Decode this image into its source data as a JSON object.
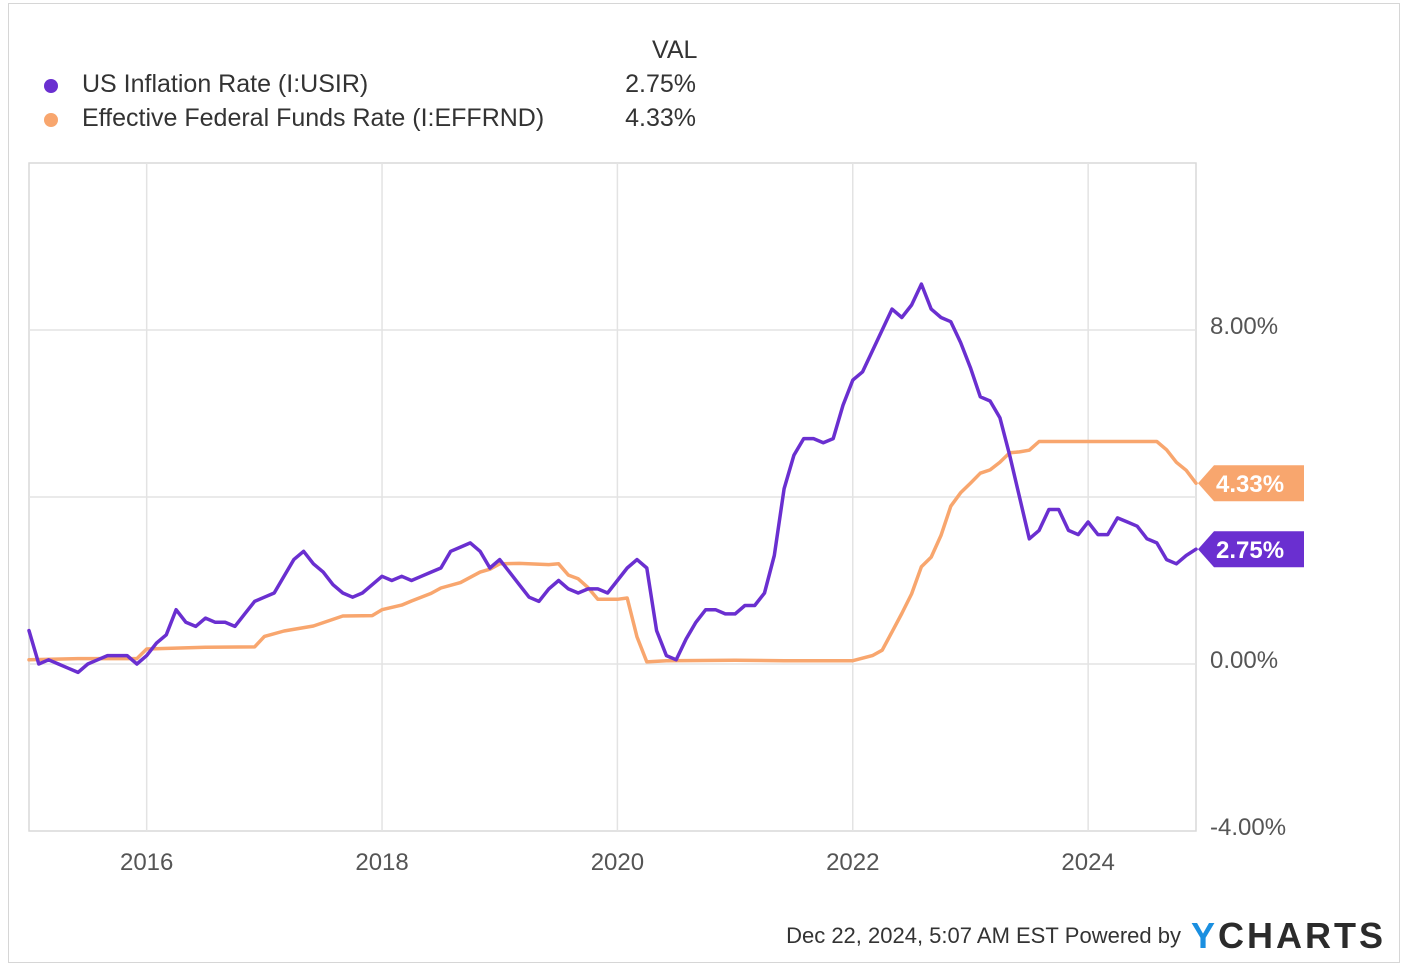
{
  "legend": {
    "header": "VAL",
    "items": [
      {
        "label": "US Inflation Rate (I:USIR)",
        "value": "2.75%",
        "color": "#6a2fd0"
      },
      {
        "label": "Effective Federal Funds Rate (I:EFFRND)",
        "value": "4.33%",
        "color": "#f8a66e"
      }
    ]
  },
  "chart_data": {
    "type": "line",
    "xlim": [
      "2015-01",
      "2024-12"
    ],
    "ylim": [
      -4,
      12
    ],
    "grid": true,
    "legend_position": "top-left",
    "x_ticks": [
      {
        "label": "2016",
        "date": "2016-01"
      },
      {
        "label": "2018",
        "date": "2018-01"
      },
      {
        "label": "2020",
        "date": "2020-01"
      },
      {
        "label": "2022",
        "date": "2022-01"
      },
      {
        "label": "2024",
        "date": "2024-01"
      }
    ],
    "y_ticks": [
      {
        "label": "8.00%",
        "value": 8
      },
      {
        "label": "0.00%",
        "value": 0
      },
      {
        "label": "-4.00%",
        "value": -4
      }
    ],
    "series": [
      {
        "name": "US Inflation Rate (I:USIR)",
        "color": "#6a2fd0",
        "end_label": "2.75%",
        "points": [
          [
            "2015-01",
            0.8
          ],
          [
            "2015-02",
            0.0
          ],
          [
            "2015-03",
            0.1
          ],
          [
            "2015-04",
            0.0
          ],
          [
            "2015-05",
            -0.1
          ],
          [
            "2015-06",
            -0.2
          ],
          [
            "2015-07",
            0.0
          ],
          [
            "2015-08",
            0.1
          ],
          [
            "2015-09",
            0.2
          ],
          [
            "2015-10",
            0.2
          ],
          [
            "2015-11",
            0.2
          ],
          [
            "2015-12",
            0.0
          ],
          [
            "2016-01",
            0.2
          ],
          [
            "2016-02",
            0.5
          ],
          [
            "2016-03",
            0.7
          ],
          [
            "2016-04",
            1.3
          ],
          [
            "2016-05",
            1.0
          ],
          [
            "2016-06",
            0.9
          ],
          [
            "2016-07",
            1.1
          ],
          [
            "2016-08",
            1.0
          ],
          [
            "2016-09",
            1.0
          ],
          [
            "2016-10",
            0.9
          ],
          [
            "2016-11",
            1.2
          ],
          [
            "2016-12",
            1.5
          ],
          [
            "2017-01",
            1.6
          ],
          [
            "2017-02",
            1.7
          ],
          [
            "2017-03",
            2.1
          ],
          [
            "2017-04",
            2.5
          ],
          [
            "2017-05",
            2.7
          ],
          [
            "2017-06",
            2.4
          ],
          [
            "2017-07",
            2.2
          ],
          [
            "2017-08",
            1.9
          ],
          [
            "2017-09",
            1.7
          ],
          [
            "2017-10",
            1.6
          ],
          [
            "2017-11",
            1.7
          ],
          [
            "2017-12",
            1.9
          ],
          [
            "2018-01",
            2.1
          ],
          [
            "2018-02",
            2.0
          ],
          [
            "2018-03",
            2.1
          ],
          [
            "2018-04",
            2.0
          ],
          [
            "2018-05",
            2.1
          ],
          [
            "2018-06",
            2.2
          ],
          [
            "2018-07",
            2.3
          ],
          [
            "2018-08",
            2.7
          ],
          [
            "2018-09",
            2.8
          ],
          [
            "2018-10",
            2.9
          ],
          [
            "2018-11",
            2.7
          ],
          [
            "2018-12",
            2.3
          ],
          [
            "2019-01",
            2.5
          ],
          [
            "2019-02",
            2.2
          ],
          [
            "2019-03",
            1.9
          ],
          [
            "2019-04",
            1.6
          ],
          [
            "2019-05",
            1.5
          ],
          [
            "2019-06",
            1.8
          ],
          [
            "2019-07",
            2.0
          ],
          [
            "2019-08",
            1.8
          ],
          [
            "2019-09",
            1.7
          ],
          [
            "2019-10",
            1.8
          ],
          [
            "2019-11",
            1.8
          ],
          [
            "2019-12",
            1.7
          ],
          [
            "2020-01",
            2.0
          ],
          [
            "2020-02",
            2.3
          ],
          [
            "2020-03",
            2.5
          ],
          [
            "2020-04",
            2.3
          ],
          [
            "2020-05",
            0.8
          ],
          [
            "2020-06",
            0.2
          ],
          [
            "2020-07",
            0.1
          ],
          [
            "2020-08",
            0.6
          ],
          [
            "2020-09",
            1.0
          ],
          [
            "2020-10",
            1.3
          ],
          [
            "2020-11",
            1.3
          ],
          [
            "2020-12",
            1.2
          ],
          [
            "2021-01",
            1.2
          ],
          [
            "2021-02",
            1.4
          ],
          [
            "2021-03",
            1.4
          ],
          [
            "2021-04",
            1.7
          ],
          [
            "2021-05",
            2.6
          ],
          [
            "2021-06",
            4.2
          ],
          [
            "2021-07",
            5.0
          ],
          [
            "2021-08",
            5.4
          ],
          [
            "2021-09",
            5.4
          ],
          [
            "2021-10",
            5.3
          ],
          [
            "2021-11",
            5.4
          ],
          [
            "2021-12",
            6.2
          ],
          [
            "2022-01",
            6.8
          ],
          [
            "2022-02",
            7.0
          ],
          [
            "2022-03",
            7.5
          ],
          [
            "2022-04",
            8.0
          ],
          [
            "2022-05",
            8.5
          ],
          [
            "2022-06",
            8.3
          ],
          [
            "2022-07",
            8.6
          ],
          [
            "2022-08",
            9.1
          ],
          [
            "2022-09",
            8.5
          ],
          [
            "2022-10",
            8.3
          ],
          [
            "2022-11",
            8.2
          ],
          [
            "2022-12",
            7.7
          ],
          [
            "2023-01",
            7.1
          ],
          [
            "2023-02",
            6.4
          ],
          [
            "2023-03",
            6.3
          ],
          [
            "2023-04",
            5.9
          ],
          [
            "2023-05",
            5.0
          ],
          [
            "2023-06",
            4.0
          ],
          [
            "2023-07",
            3.0
          ],
          [
            "2023-08",
            3.2
          ],
          [
            "2023-09",
            3.7
          ],
          [
            "2023-10",
            3.7
          ],
          [
            "2023-11",
            3.2
          ],
          [
            "2023-12",
            3.1
          ],
          [
            "2024-01",
            3.4
          ],
          [
            "2024-02",
            3.1
          ],
          [
            "2024-03",
            3.1
          ],
          [
            "2024-04",
            3.5
          ],
          [
            "2024-05",
            3.4
          ],
          [
            "2024-06",
            3.3
          ],
          [
            "2024-07",
            3.0
          ],
          [
            "2024-08",
            2.9
          ],
          [
            "2024-09",
            2.5
          ],
          [
            "2024-10",
            2.4
          ],
          [
            "2024-11",
            2.6
          ],
          [
            "2024-12",
            2.75
          ]
        ]
      },
      {
        "name": "Effective Federal Funds Rate (I:EFFRND)",
        "color": "#f8a66e",
        "end_label": "4.33%",
        "points": [
          [
            "2015-01",
            0.1
          ],
          [
            "2015-06",
            0.13
          ],
          [
            "2015-12",
            0.13
          ],
          [
            "2016-01",
            0.36
          ],
          [
            "2016-07",
            0.4
          ],
          [
            "2016-12",
            0.41
          ],
          [
            "2017-01",
            0.66
          ],
          [
            "2017-03",
            0.79
          ],
          [
            "2017-06",
            0.91
          ],
          [
            "2017-09",
            1.15
          ],
          [
            "2017-12",
            1.16
          ],
          [
            "2018-01",
            1.3
          ],
          [
            "2018-03",
            1.41
          ],
          [
            "2018-04",
            1.51
          ],
          [
            "2018-06",
            1.69
          ],
          [
            "2018-07",
            1.82
          ],
          [
            "2018-09",
            1.95
          ],
          [
            "2018-11",
            2.2
          ],
          [
            "2018-12",
            2.27
          ],
          [
            "2019-01",
            2.4
          ],
          [
            "2019-03",
            2.41
          ],
          [
            "2019-06",
            2.38
          ],
          [
            "2019-07",
            2.4
          ],
          [
            "2019-08",
            2.13
          ],
          [
            "2019-09",
            2.04
          ],
          [
            "2019-10",
            1.83
          ],
          [
            "2019-11",
            1.55
          ],
          [
            "2019-12",
            1.55
          ],
          [
            "2020-01",
            1.55
          ],
          [
            "2020-02",
            1.58
          ],
          [
            "2020-03",
            0.65
          ],
          [
            "2020-04",
            0.05
          ],
          [
            "2020-06",
            0.08
          ],
          [
            "2021-01",
            0.09
          ],
          [
            "2021-06",
            0.08
          ],
          [
            "2022-01",
            0.08
          ],
          [
            "2022-03",
            0.2
          ],
          [
            "2022-04",
            0.33
          ],
          [
            "2022-05",
            0.77
          ],
          [
            "2022-06",
            1.21
          ],
          [
            "2022-07",
            1.68
          ],
          [
            "2022-08",
            2.33
          ],
          [
            "2022-09",
            2.56
          ],
          [
            "2022-10",
            3.08
          ],
          [
            "2022-11",
            3.78
          ],
          [
            "2022-12",
            4.1
          ],
          [
            "2023-01",
            4.33
          ],
          [
            "2023-02",
            4.57
          ],
          [
            "2023-03",
            4.65
          ],
          [
            "2023-04",
            4.83
          ],
          [
            "2023-05",
            5.06
          ],
          [
            "2023-06",
            5.08
          ],
          [
            "2023-07",
            5.12
          ],
          [
            "2023-08",
            5.33
          ],
          [
            "2023-12",
            5.33
          ],
          [
            "2024-08",
            5.33
          ],
          [
            "2024-09",
            5.13
          ],
          [
            "2024-10",
            4.83
          ],
          [
            "2024-11",
            4.64
          ],
          [
            "2024-12",
            4.33
          ]
        ]
      }
    ]
  },
  "footer": {
    "timestamp": "Dec 22, 2024, 5:07 AM EST",
    "powered_by": "Powered by",
    "logo_y": "Y",
    "logo_rest": "CHARTS"
  }
}
